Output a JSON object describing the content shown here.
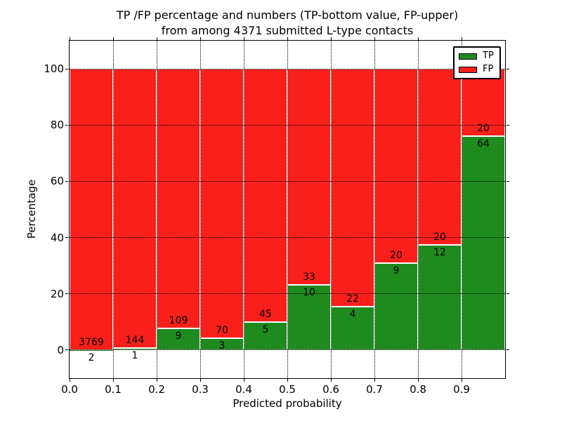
{
  "title": {
    "line1": "TP /FP percentage and numbers (TP-bottom value, FP-upper)",
    "line2": "from among 4371 submitted L-type contacts"
  },
  "axes": {
    "x_label": "Predicted probability",
    "y_label": "Percentage",
    "x_tick_labels": [
      "0.0",
      "0.1",
      "0.2",
      "0.3",
      "0.4",
      "0.5",
      "0.6",
      "0.7",
      "0.8",
      "0.9"
    ],
    "y_tick_labels": [
      "0",
      "20",
      "40",
      "60",
      "80",
      "100"
    ]
  },
  "legend": {
    "items": [
      {
        "label": "TP",
        "color": "#1f8b1f"
      },
      {
        "label": "FP",
        "color": "#f91f1b"
      }
    ]
  },
  "colors": {
    "tp_green": "#1f8b1f",
    "fp_red": "#f91f1b",
    "bar_edge": "#ffffff",
    "grid": "#000000",
    "background": "#ffffff"
  },
  "chart_data": {
    "type": "bar",
    "stacked": true,
    "title": "TP /FP percentage and numbers (TP-bottom value, FP-upper) from among 4371 submitted L-type contacts",
    "xlabel": "Predicted probability",
    "ylabel": "Percentage",
    "xlim": [
      0.0,
      1.0
    ],
    "ylim": [
      -10,
      110
    ],
    "grid": "dotted, both axes",
    "legend_position": "upper right",
    "total_contacts": 4371,
    "bin_width": 0.1,
    "bin_edges": [
      0.0,
      0.1,
      0.2,
      0.3,
      0.4,
      0.5,
      0.6,
      0.7,
      0.8,
      0.9,
      1.0
    ],
    "categories": [
      "0.0-0.1",
      "0.1-0.2",
      "0.2-0.3",
      "0.3-0.4",
      "0.4-0.5",
      "0.5-0.6",
      "0.6-0.7",
      "0.7-0.8",
      "0.8-0.9",
      "0.9-1.0"
    ],
    "series": [
      {
        "name": "TP",
        "color": "#1f8b1f",
        "counts": [
          2,
          1,
          9,
          3,
          5,
          10,
          4,
          9,
          12,
          64
        ]
      },
      {
        "name": "FP",
        "color": "#f91f1b",
        "counts": [
          3769,
          144,
          109,
          70,
          45,
          33,
          22,
          20,
          20,
          20
        ]
      }
    ],
    "tp_percent": [
      0.05,
      0.69,
      7.63,
      4.11,
      10.0,
      23.26,
      15.38,
      31.03,
      37.5,
      76.19
    ],
    "x_ticks": [
      0.0,
      0.1,
      0.2,
      0.3,
      0.4,
      0.5,
      0.6,
      0.7,
      0.8,
      0.9
    ],
    "y_ticks": [
      0,
      20,
      40,
      60,
      80,
      100
    ]
  }
}
